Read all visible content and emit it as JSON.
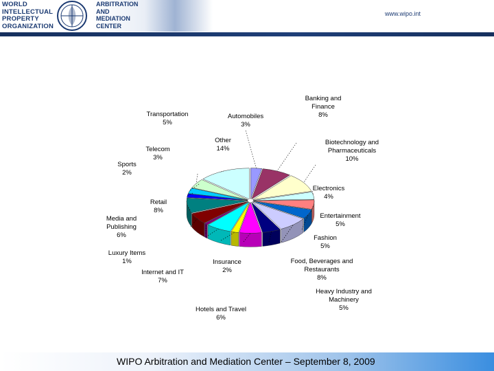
{
  "header": {
    "org_lines": [
      "WORLD",
      "INTELLECTUAL",
      "PROPERTY",
      "ORGANIZATION"
    ],
    "center_lines": [
      "ARBITRATION",
      "AND",
      "MEDIATION",
      "CENTER"
    ],
    "url": "www.wipo.int",
    "rule_color": "#16305e"
  },
  "footer": {
    "text": "WIPO Arbitration and Mediation Center – September 8, 2009"
  },
  "chart_data": {
    "type": "pie",
    "title": "",
    "style": "3d-exploded",
    "labels_style": "callout labels with leader lines",
    "slices": [
      {
        "name": "Automobiles",
        "value": 3,
        "label": "3%",
        "color": "#9999ff"
      },
      {
        "name": "Banking and Finance",
        "value": 8,
        "label": "8%",
        "color": "#993366"
      },
      {
        "name": "Biotechnology and Pharmaceuticals",
        "value": 10,
        "label": "10%",
        "color": "#ffffcc"
      },
      {
        "name": "Electronics",
        "value": 4,
        "label": "4%",
        "color": "#ccffff"
      },
      {
        "name": "Entertainment",
        "value": 5,
        "label": "5%",
        "color": "#ff8080"
      },
      {
        "name": "Fashion",
        "value": 5,
        "label": "5%",
        "color": "#0066cc"
      },
      {
        "name": "Food, Beverages and Restaurants",
        "value": 8,
        "label": "8%",
        "color": "#ccccff"
      },
      {
        "name": "Heavy Industry and Machinery",
        "value": 5,
        "label": "5%",
        "color": "#000080"
      },
      {
        "name": "Hotels and Travel",
        "value": 6,
        "label": "6%",
        "color": "#ff00ff"
      },
      {
        "name": "Insurance",
        "value": 2,
        "label": "2%",
        "color": "#ffff00"
      },
      {
        "name": "Internet and IT",
        "value": 7,
        "label": "7%",
        "color": "#00ffff"
      },
      {
        "name": "Luxury Items",
        "value": 1,
        "label": "1%",
        "color": "#800080"
      },
      {
        "name": "Media and Publishing",
        "value": 6,
        "label": "6%",
        "color": "#800000"
      },
      {
        "name": "Retail",
        "value": 8,
        "label": "8%",
        "color": "#008080"
      },
      {
        "name": "Sports",
        "value": 2,
        "label": "2%",
        "color": "#0000ff"
      },
      {
        "name": "Telecom",
        "value": 3,
        "label": "3%",
        "color": "#00ccff"
      },
      {
        "name": "Transportation",
        "value": 5,
        "label": "5%",
        "color": "#ccffcc"
      },
      {
        "name": "Other",
        "value": 14,
        "label": "14%",
        "color": "#ccffff"
      }
    ]
  }
}
